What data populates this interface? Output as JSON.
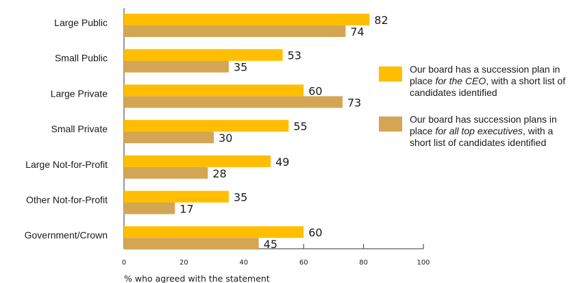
{
  "chart_data": {
    "type": "bar",
    "orientation": "horizontal",
    "categories": [
      "Large Public",
      "Small Public",
      "Large Private",
      "Small Private",
      "Large Not-for-Profit",
      "Other Not-for-Profit",
      "Government/Crown"
    ],
    "series": [
      {
        "name_parts": [
          "Our board has a succession plan in place ",
          "for the CEO",
          ", with a short list of candidates identified"
        ],
        "color": "#FFBF00",
        "values": [
          82,
          53,
          60,
          55,
          49,
          35,
          60
        ]
      },
      {
        "name_parts": [
          "Our board has succession plans in place ",
          "for all top executives",
          ", with a short list of candidates identified"
        ],
        "color": "#D4A653",
        "values": [
          74,
          35,
          73,
          30,
          28,
          17,
          45
        ]
      }
    ],
    "xlim": [
      0,
      100
    ],
    "xticks": [
      0,
      20,
      40,
      60,
      80,
      100
    ],
    "xlabel": "% who agreed with the statement",
    "legend_position": "right"
  }
}
